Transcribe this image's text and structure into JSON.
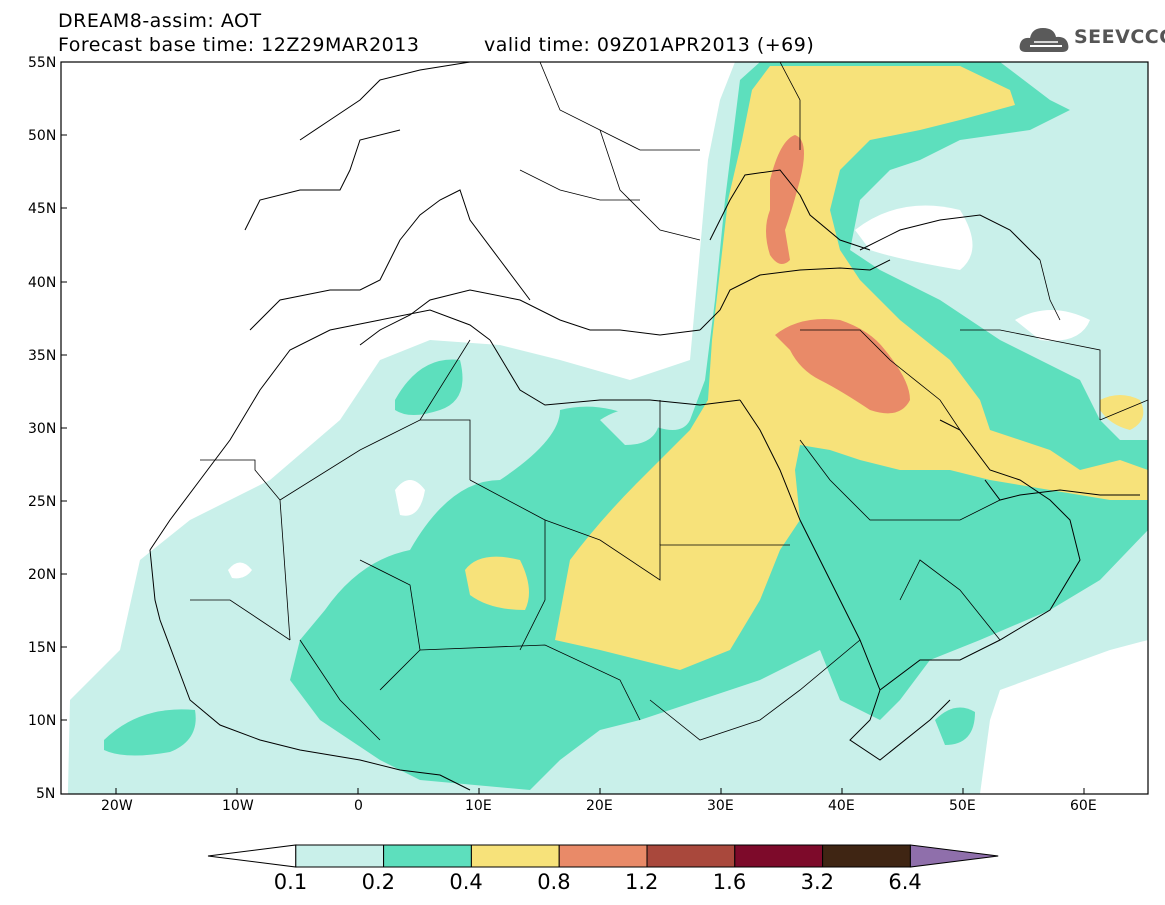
{
  "header": {
    "line1": "DREAM8-assim: AOT",
    "line2": "Forecast base time: 12Z29MAR2013",
    "line3": "valid time: 09Z01APR2013 (+69)"
  },
  "logo": {
    "text": "SEEVCCC",
    "icon": "cloud-icon"
  },
  "axes": {
    "lat_labels": [
      "55N",
      "50N",
      "45N",
      "40N",
      "35N",
      "30N",
      "25N",
      "20N",
      "15N",
      "10N",
      "5N"
    ],
    "lon_labels": [
      "20W",
      "10W",
      "0",
      "10E",
      "20E",
      "30E",
      "40E",
      "50E",
      "60E"
    ]
  },
  "colorbar": {
    "labels": [
      "0.1",
      "0.2",
      "0.4",
      "0.8",
      "1.2",
      "1.6",
      "3.2",
      "6.4"
    ],
    "colors": [
      "#ffffff",
      "#c9f0ea",
      "#5ddfbd",
      "#f7e27a",
      "#e98a68",
      "#a9483c",
      "#7d0a2a",
      "#3f2513",
      "#8f6fab"
    ]
  }
}
